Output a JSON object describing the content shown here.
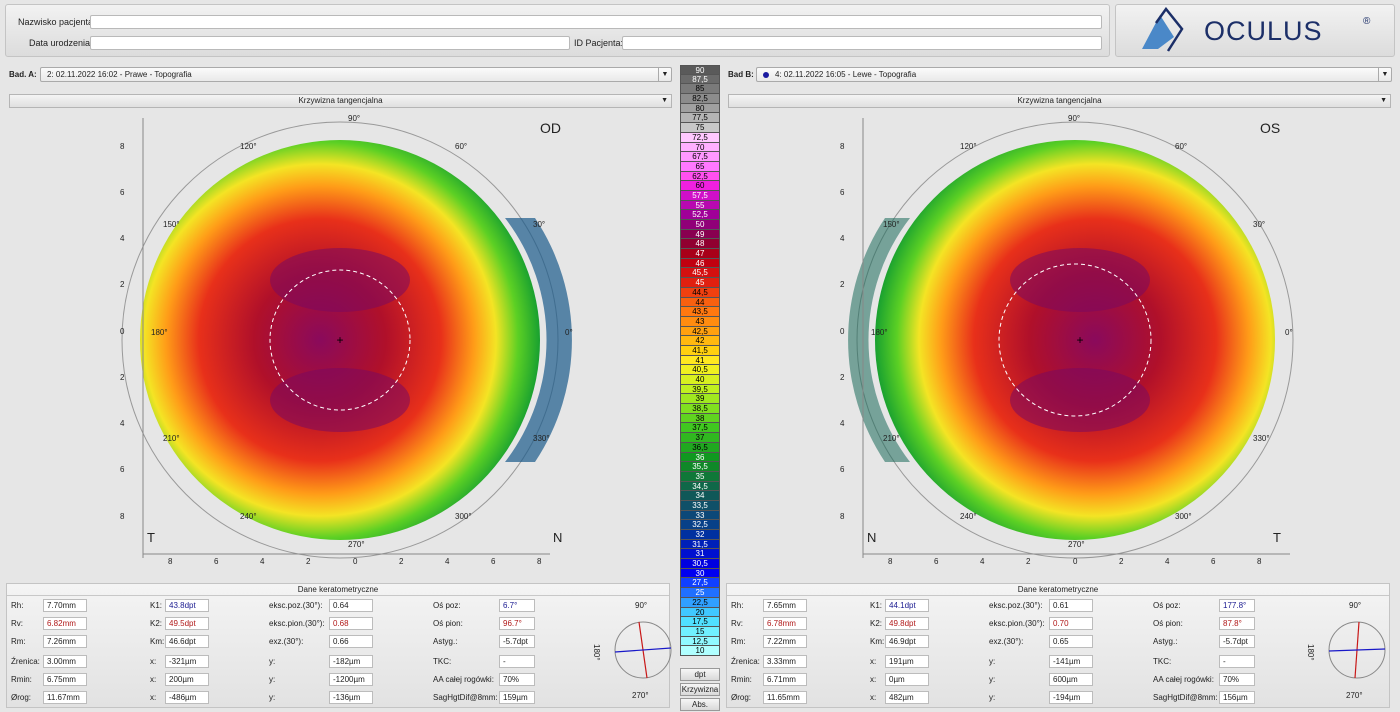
{
  "patient": {
    "name_label": "Nazwisko pacjenta:",
    "name_value": "",
    "dob_label": "Data urodzenia:",
    "dob_value": "",
    "id_label": "ID Pacjenta:",
    "id_value": ""
  },
  "logo": {
    "text": "OCULUS",
    "reg": "®"
  },
  "exam_a": {
    "label": "Bad. A:",
    "selected": "2: 02.11.2022 16:02 - Prawe - Topografia",
    "map_type": "Krzywizna tangencjalna",
    "eye": "OD",
    "left_corner": "T",
    "right_corner": "N"
  },
  "exam_b": {
    "label": "Bad B:",
    "selected": "4: 02.11.2022 16:05 - Lewe - Topografia",
    "map_type": "Krzywizna tangencjalna",
    "eye": "OS",
    "left_corner": "N",
    "right_corner": "T"
  },
  "map_axes": {
    "angles": [
      "90°",
      "60°",
      "30°",
      "0°",
      "330°",
      "300°",
      "270°",
      "240°",
      "210°",
      "180°",
      "150°",
      "120°"
    ],
    "y_ticks": [
      "8",
      "6",
      "4",
      "2",
      "0",
      "2",
      "4",
      "6",
      "8"
    ],
    "x_ticks": [
      "8",
      "6",
      "4",
      "2",
      "0",
      "2",
      "4",
      "6",
      "8"
    ]
  },
  "scale": {
    "values": [
      "90",
      "87,5",
      "85",
      "82,5",
      "80",
      "77,5",
      "75",
      "72,5",
      "70",
      "67,5",
      "65",
      "62,5",
      "60",
      "57,5",
      "55",
      "52,5",
      "50",
      "49",
      "48",
      "47",
      "46",
      "45,5",
      "45",
      "44,5",
      "44",
      "43,5",
      "43",
      "42,5",
      "42",
      "41,5",
      "41",
      "40,5",
      "40",
      "39,5",
      "39",
      "38,5",
      "38",
      "37,5",
      "37",
      "36,5",
      "36",
      "35,5",
      "35",
      "34,5",
      "34",
      "33,5",
      "33",
      "32,5",
      "32",
      "31,5",
      "31",
      "30,5",
      "30",
      "27,5",
      "25",
      "22,5",
      "20",
      "17,5",
      "15",
      "12,5",
      "10"
    ],
    "colors": [
      "#5a5a5a",
      "#6a6a6a",
      "#7a7a7a",
      "#8c8c8c",
      "#a0a0a0",
      "#b4b4b4",
      "#c8c8c8",
      "#ffc8ff",
      "#ffb0ff",
      "#ff98ff",
      "#ff78ff",
      "#ff50f0",
      "#f020e0",
      "#d010c8",
      "#b808b0",
      "#a00098",
      "#900078",
      "#880050",
      "#900030",
      "#a80018",
      "#c00010",
      "#d41010",
      "#e02010",
      "#f04010",
      "#f86010",
      "#ff7810",
      "#ff8c10",
      "#ffa010",
      "#ffb810",
      "#ffd010",
      "#ffe820",
      "#f0f020",
      "#d8f020",
      "#c0f020",
      "#a0e820",
      "#80e020",
      "#60d420",
      "#40c820",
      "#30b820",
      "#20a820",
      "#109820",
      "#108828",
      "#107838",
      "#106848",
      "#105858",
      "#105068",
      "#0c4878",
      "#084088",
      "#0030a0",
      "#0020b8",
      "#0010d0",
      "#0000e0",
      "#0000f0",
      "#1040ff",
      "#2070ff",
      "#30a0ff",
      "#40c8ff",
      "#50e0ff",
      "#70f0ff",
      "#90f8ff",
      "#b0ffff"
    ],
    "unit_button": "dpt",
    "mode_button": "Krzywizna",
    "abs_button": "Abs."
  },
  "kerato_a": {
    "title": "Dane keratometryczne",
    "Rh_label": "Rh:",
    "Rh": "7.70mm",
    "Rv_label": "Rv:",
    "Rv": "6.82mm",
    "Rm_label": "Rm:",
    "Rm": "7.26mm",
    "K1_label": "K1:",
    "K1": "43.8dpt",
    "K2_label": "K2:",
    "K2": "49.5dpt",
    "Km_label": "Km:",
    "Km": "46.6dpt",
    "ecc_h_label": "eksc.poz.(30°):",
    "ecc_h": "0.64",
    "ecc_v_label": "eksc.pion.(30°):",
    "ecc_v": "0.68",
    "exz_label": "exz.(30°):",
    "exz": "0.66",
    "axis_h_label": "Oś poz:",
    "axis_h": "6.7°",
    "axis_v_label": "Oś pion:",
    "axis_v": "96.7°",
    "astig_label": "Astyg.:",
    "astig": "-5.7dpt",
    "pupil_label": "Źrenica:",
    "pupil": "3.00mm",
    "rmin_label": "Rmin:",
    "rmin": "6.75mm",
    "limbus_label": "Ørog:",
    "limbus": "11.67mm",
    "x_label": "x:",
    "pupil_x": "-321µm",
    "rmin_x": "200µm",
    "limbus_x": "-486µm",
    "y_label": "y:",
    "pupil_y": "-182µm",
    "rmin_y": "-1200µm",
    "limbus_y": "-136µm",
    "tkc_label": "TKC:",
    "tkc": "-",
    "aa_label": "AA całej rogówki:",
    "aa": "70%",
    "sag_label": "SagHgtDif@8mm:",
    "sag": "159µm",
    "axis_angles": [
      "90°",
      "180°",
      "270°"
    ]
  },
  "kerato_b": {
    "title": "Dane keratometryczne",
    "Rh_label": "Rh:",
    "Rh": "7.65mm",
    "Rv_label": "Rv:",
    "Rv": "6.78mm",
    "Rm_label": "Rm:",
    "Rm": "7.22mm",
    "K1_label": "K1:",
    "K1": "44.1dpt",
    "K2_label": "K2:",
    "K2": "49.8dpt",
    "Km_label": "Km:",
    "Km": "46.9dpt",
    "ecc_h_label": "eksc.poz.(30°):",
    "ecc_h": "0.61",
    "ecc_v_label": "eksc.pion.(30°):",
    "ecc_v": "0.70",
    "exz_label": "exz.(30°):",
    "exz": "0.65",
    "axis_h_label": "Oś poz:",
    "axis_h": "177.8°",
    "axis_v_label": "Oś pion:",
    "axis_v": "87.8°",
    "astig_label": "Astyg.:",
    "astig": "-5.7dpt",
    "pupil_label": "Źrenica:",
    "pupil": "3.33mm",
    "rmin_label": "Rmin:",
    "rmin": "6.71mm",
    "limbus_label": "Ørog:",
    "limbus": "11.65mm",
    "x_label": "x:",
    "pupil_x": "191µm",
    "rmin_x": "0µm",
    "limbus_x": "482µm",
    "y_label": "y:",
    "pupil_y": "-141µm",
    "rmin_y": "600µm",
    "limbus_y": "-194µm",
    "tkc_label": "TKC:",
    "tkc": "-",
    "aa_label": "AA całej rogówki:",
    "aa": "70%",
    "sag_label": "SagHgtDif@8mm:",
    "sag": "156µm",
    "axis_angles": [
      "90°",
      "180°",
      "270°"
    ]
  },
  "colors": {
    "accent_blue": "#1a1aa0",
    "red_value": "#b01818",
    "bg": "#e6e6e6"
  }
}
